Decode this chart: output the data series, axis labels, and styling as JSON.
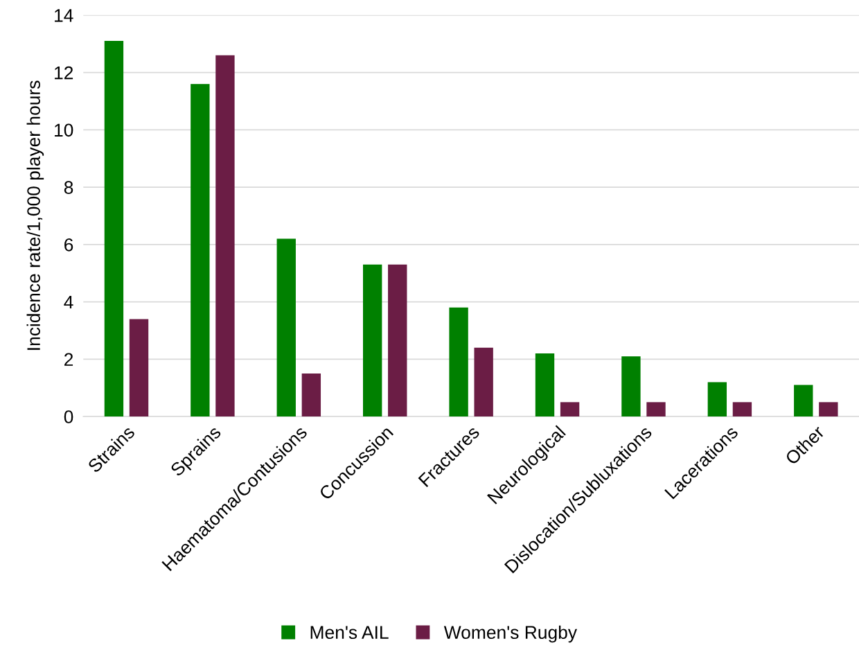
{
  "chart_data": {
    "type": "bar",
    "ylabel": "Incidence rate/1,000 player hours",
    "categories": [
      "Strains",
      "Sprains",
      "Haematoma/Contusions",
      "Concussion",
      "Fractures",
      "Neurological",
      "Dislocation/Subluxations",
      "Lacerations",
      "Other"
    ],
    "series": [
      {
        "name": "Men's AIL",
        "color": "#008000",
        "values": [
          13.1,
          11.6,
          6.2,
          5.3,
          3.8,
          2.2,
          2.1,
          1.2,
          1.1
        ]
      },
      {
        "name": "Women's Rugby",
        "color": "#6b1d45",
        "values": [
          3.4,
          12.6,
          1.5,
          5.3,
          2.4,
          0.5,
          0.5,
          0.5,
          0.5
        ]
      }
    ],
    "ylim": [
      0,
      14
    ],
    "yticks": [
      0,
      2,
      4,
      6,
      8,
      10,
      12,
      14
    ],
    "grid": "y",
    "legend": "bottom"
  }
}
